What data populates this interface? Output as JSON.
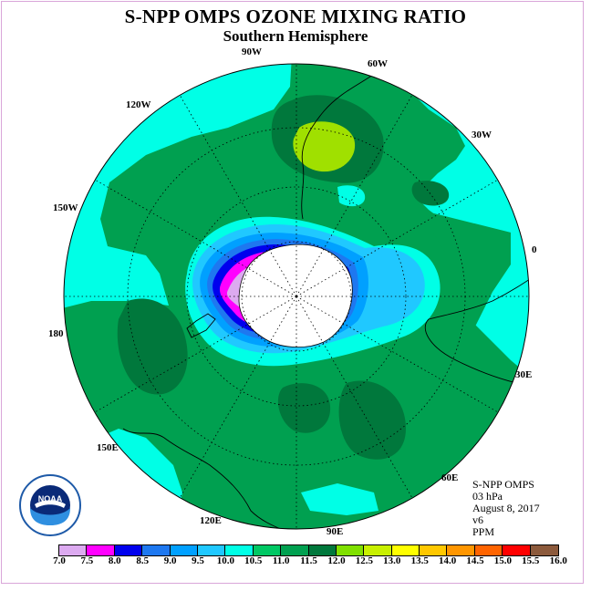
{
  "title": "S-NPP OMPS OZONE MIXING RATIO",
  "subtitle": "Southern Hemisphere",
  "info": {
    "instrument": "S-NPP OMPS",
    "level": "03 hPa",
    "date": "August 8, 2017",
    "version": "v6",
    "units": "PPM"
  },
  "logo": {
    "icon": "noaa-logo",
    "text": "NOAA"
  },
  "longitude_labels": [
    "90W",
    "60W",
    "30W",
    "0",
    "30E",
    "60E",
    "90E",
    "120E",
    "150E",
    "180",
    "150W",
    "120W"
  ],
  "colorbar": {
    "ticks": [
      "7.0",
      "7.5",
      "8.0",
      "8.5",
      "9.0",
      "9.5",
      "10.0",
      "10.5",
      "11.0",
      "11.5",
      "12.0",
      "12.5",
      "13.0",
      "13.5",
      "14.0",
      "14.5",
      "15.0",
      "15.5",
      "16.0"
    ],
    "colors": [
      "#c080f0",
      "#dcaaf0",
      "#ff00ff",
      "#0000ee",
      "#1e78f0",
      "#00a0ff",
      "#20c8ff",
      "#00ffe6",
      "#00c864",
      "#00a050",
      "#00783c",
      "#80e000",
      "#c8f000",
      "#ffff00",
      "#ffc800",
      "#ff9600",
      "#ff6400",
      "#ff0000",
      "#8c5a3c"
    ]
  },
  "colors": {
    "background_field": "#00a050",
    "high_region": "#00783c",
    "low_region": "#00ffe6",
    "vortex_edge": "#20c8ff",
    "maximum": "#a0e000",
    "antarctica_fill": "#ffffff",
    "coastline": "#000000",
    "gridline": "#000000"
  }
}
